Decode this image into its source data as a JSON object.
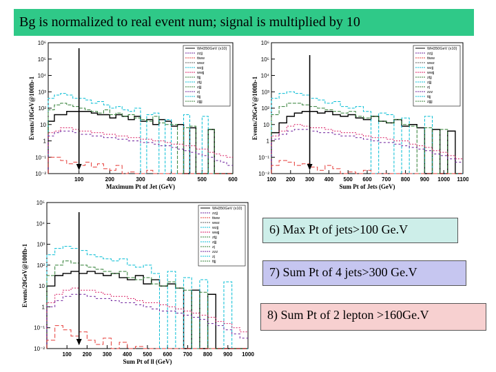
{
  "banner": {
    "text": "Bg is normalized to real event num;  signal is multiplied by 10",
    "bg": "#2fc988"
  },
  "labels": [
    {
      "text": "6) Max Pt of jets>100 Ge.V",
      "bg": "#cdeee9"
    },
    {
      "text": "7) Sum Pt of 4 jets>300 Ge.V",
      "bg": "#c6c6f0"
    },
    {
      "text": "8) Sum Pt of 2 lepton >160Ge.V",
      "bg": "#f7d0d0"
    }
  ],
  "chart_data": [
    {
      "type": "histogram",
      "xlabel": "Maximum Pt of Jet (GeV)",
      "ylabel": "Events/10GeV@100fb-1",
      "xlim": [
        0,
        600
      ],
      "xticks": [
        "100",
        "200",
        "300",
        "400",
        "500",
        "600"
      ],
      "yticks": [
        "10⁻²",
        "10⁻¹",
        "1",
        "10",
        "10²",
        "10³",
        "10⁴",
        "10⁵",
        "10⁶"
      ],
      "log_range": [
        -2,
        6
      ],
      "legend": [
        "WH350GeV (x10)",
        "zzjj",
        "ttww",
        "wwz",
        "wzjj",
        "wwjj",
        "ttjj",
        "ztjj",
        "zjjj",
        "zj",
        "ttjj",
        "zjjjj"
      ],
      "cut": 100,
      "series": [
        {
          "name": "signal",
          "color": "#000000",
          "dash": "",
          "bin": 20,
          "log_values": [
            1.2,
            1.6,
            1.6,
            1.8,
            1.8,
            1.8,
            1.8,
            1.7,
            1.6,
            1.6,
            1.4,
            1.6,
            1.5,
            1.3,
            1.5,
            1.2,
            1.3,
            1.0,
            1.3,
            1.2,
            0.9,
            1.0,
            -2,
            0.8,
            -2,
            -2,
            0.7,
            -2,
            -2,
            -2
          ]
        },
        {
          "name": "zjjj",
          "color": "#00bcd4",
          "dash": "4,2",
          "bin": 20,
          "log_values": [
            2.6,
            2.8,
            2.9,
            2.8,
            2.6,
            2.6,
            2.5,
            2.3,
            2.4,
            2.2,
            2.0,
            2.1,
            1.9,
            1.8,
            2.0,
            -2,
            1.6,
            1.7,
            -2,
            1.3,
            -2,
            -2,
            1.6,
            -2,
            -2,
            1.5,
            -2,
            -2,
            -2,
            -2
          ]
        },
        {
          "name": "ttjj",
          "color": "#2e7d32",
          "dash": "5,2",
          "bin": 20,
          "log_values": [
            1.9,
            2.2,
            2.3,
            2.2,
            2.1,
            2.0,
            1.9,
            1.8,
            1.7,
            1.9,
            1.6,
            1.7,
            1.5,
            1.6,
            1.4,
            1.3,
            1.2,
            1.5,
            1.1,
            1.0,
            1.0,
            -2,
            0.8,
            0.9,
            -2,
            -2,
            0.7,
            -2,
            -2,
            -2
          ]
        },
        {
          "name": "wwjj",
          "color": "#d81b60",
          "dash": "2,2",
          "bin": 20,
          "log_values": [
            0.5,
            0.6,
            0.8,
            0.8,
            0.7,
            0.6,
            0.6,
            0.5,
            0.5,
            0.4,
            0.4,
            0.3,
            0.3,
            0.2,
            0.2,
            0.1,
            0.1,
            0.0,
            0.0,
            -0.1,
            -0.2,
            -0.2,
            -0.3,
            -0.3,
            -0.5,
            -0.5,
            -0.7,
            -0.8,
            -0.9,
            -1.0
          ]
        },
        {
          "name": "zzjj",
          "color": "#6a1b9a",
          "dash": "3,3",
          "bin": 20,
          "log_values": [
            0.3,
            0.5,
            0.6,
            0.6,
            0.5,
            0.4,
            0.4,
            0.3,
            0.3,
            0.2,
            0.2,
            0.1,
            0.1,
            0.0,
            0.0,
            -0.1,
            -0.1,
            -0.2,
            -0.3,
            -0.3,
            -0.4,
            -0.5,
            -0.6,
            -0.7,
            -0.8,
            -0.9,
            -1.0,
            -1.2,
            -1.3,
            -1.5
          ]
        },
        {
          "name": "ttww",
          "color": "#e53935",
          "dash": "6,3",
          "bin": 20,
          "log_values": [
            -1.0,
            -1.0,
            -1.2,
            -1.4,
            -1.3,
            -1.5,
            -1.3,
            -1.6,
            -1.4,
            -1.7,
            -1.8,
            -1.5,
            -2,
            -1.9,
            -2,
            -2,
            -1.8,
            -2,
            -2,
            -2,
            -2,
            -2,
            -2,
            -2,
            -2,
            -2,
            -2,
            -2,
            -2,
            -2
          ]
        }
      ]
    },
    {
      "type": "histogram",
      "xlabel": "Sum Pt of Jets (GeV)",
      "ylabel": "Events/20GeV@100fb-1",
      "xlim": [
        100,
        1100
      ],
      "xticks": [
        "100",
        "200",
        "300",
        "400",
        "500",
        "600",
        "700",
        "800",
        "900",
        "1000",
        "1100"
      ],
      "yticks": [
        "10⁻²",
        "10⁻¹",
        "1",
        "10",
        "10²",
        "10³",
        "10⁴",
        "10⁵",
        "10⁶"
      ],
      "log_range": [
        -2,
        6
      ],
      "legend": [
        "WH350GeV (x10)",
        "zzjj",
        "ttww",
        "wwz",
        "wzjj",
        "wwjj",
        "ztjj",
        "zjjj",
        "zj",
        "zzz",
        "ttjj",
        "zjjjj"
      ],
      "cut": 300,
      "series": [
        {
          "name": "signal",
          "color": "#000000",
          "dash": "",
          "bin": 40,
          "log_values": [
            0.5,
            1.1,
            1.5,
            1.7,
            1.8,
            1.8,
            1.7,
            1.8,
            1.6,
            1.5,
            1.6,
            1.4,
            1.3,
            1.5,
            1.2,
            1.1,
            1.3,
            0.9,
            1.0,
            0.8,
            -2,
            0.7,
            -2,
            0.6,
            -2
          ]
        },
        {
          "name": "zjjj",
          "color": "#00bcd4",
          "dash": "4,2",
          "bin": 40,
          "log_values": [
            2.6,
            2.9,
            3.0,
            2.9,
            2.8,
            2.6,
            2.5,
            2.3,
            2.4,
            2.1,
            2.0,
            2.1,
            1.8,
            -2,
            1.7,
            1.6,
            -2,
            1.4,
            -2,
            -2,
            1.5,
            -2,
            -2,
            -2,
            -2
          ]
        },
        {
          "name": "ttjj",
          "color": "#2e7d32",
          "dash": "5,2",
          "bin": 40,
          "log_values": [
            1.6,
            2.1,
            2.3,
            2.3,
            2.2,
            2.1,
            2.0,
            1.9,
            1.8,
            1.7,
            1.8,
            1.5,
            1.4,
            1.5,
            1.2,
            1.1,
            1.3,
            1.0,
            0.9,
            -2,
            0.8,
            -2,
            0.7,
            -2,
            -2
          ]
        },
        {
          "name": "wwjj",
          "color": "#d81b60",
          "dash": "2,2",
          "bin": 40,
          "log_values": [
            0.3,
            0.6,
            0.9,
            1.0,
            0.9,
            0.8,
            0.8,
            0.7,
            0.6,
            0.5,
            0.5,
            0.4,
            0.3,
            0.2,
            0.2,
            0.1,
            0.0,
            0.0,
            -0.2,
            -0.3,
            -0.4,
            -0.6,
            -0.7,
            -0.9,
            -1.1
          ]
        },
        {
          "name": "zzjj",
          "color": "#6a1b9a",
          "dash": "3,3",
          "bin": 40,
          "log_values": [
            0.1,
            0.4,
            0.6,
            0.7,
            0.7,
            0.6,
            0.5,
            0.5,
            0.4,
            0.3,
            0.3,
            0.2,
            0.1,
            0.0,
            -0.1,
            -0.1,
            -0.2,
            -0.3,
            -0.4,
            -0.5,
            -0.6,
            -0.8,
            -0.9,
            -1.1,
            -1.3
          ]
        },
        {
          "name": "ttww",
          "color": "#e53935",
          "dash": "6,3",
          "bin": 40,
          "log_values": [
            -1.5,
            -1.2,
            -1.3,
            -1.5,
            -1.4,
            -1.6,
            -1.8,
            -1.5,
            -1.7,
            -2,
            -1.9,
            -2,
            -1.8,
            -2,
            -2,
            -2,
            -2,
            -2,
            -2,
            -2,
            -2,
            -2,
            -2,
            -2,
            -2
          ]
        }
      ]
    },
    {
      "type": "histogram",
      "xlabel": "Sum Pt of ll (GeV)",
      "ylabel": "Events/20GeV@100fb-1",
      "xlim": [
        0,
        1000
      ],
      "xticks": [
        "100",
        "200",
        "300",
        "400",
        "500",
        "600",
        "700",
        "800",
        "900",
        "1000"
      ],
      "yticks": [
        "10⁻²",
        "10⁻¹",
        "1",
        "10",
        "10²",
        "10³",
        "10⁴",
        "10⁵"
      ],
      "log_range": [
        -2,
        5
      ],
      "legend": [
        "WH350GeV (x10)",
        "zzjj",
        "ttww",
        "wwz",
        "wzjj",
        "wwjj",
        "ztjj",
        "zjjj",
        "zj",
        "zzz",
        "zj",
        "ttjj"
      ],
      "cut": 160,
      "series": [
        {
          "name": "signal",
          "color": "#000000",
          "dash": "",
          "bin": 40,
          "log_values": [
            1.0,
            1.5,
            1.6,
            1.7,
            1.6,
            1.7,
            1.6,
            1.5,
            1.6,
            1.4,
            1.3,
            1.5,
            1.1,
            1.3,
            1.0,
            1.1,
            0.9,
            -2,
            0.8,
            -2,
            0.6,
            -2,
            -2,
            -2,
            -2
          ]
        },
        {
          "name": "zjjj",
          "color": "#00bcd4",
          "dash": "4,2",
          "bin": 40,
          "log_values": [
            2.5,
            2.8,
            2.9,
            2.8,
            2.7,
            2.5,
            2.4,
            2.3,
            2.2,
            2.3,
            2.0,
            1.9,
            2.0,
            1.6,
            -2,
            1.7,
            -2,
            1.4,
            -2,
            1.3,
            -2,
            -2,
            1.2,
            -2,
            -2
          ]
        },
        {
          "name": "ttjj",
          "color": "#2e7d32",
          "dash": "5,2",
          "bin": 40,
          "log_values": [
            1.5,
            2.0,
            2.2,
            2.1,
            2.0,
            1.9,
            1.8,
            1.7,
            1.6,
            1.7,
            1.4,
            1.3,
            1.4,
            1.1,
            1.0,
            1.2,
            0.9,
            0.8,
            -2,
            0.7,
            -2,
            -2,
            -2,
            -2,
            -2
          ]
        },
        {
          "name": "wwjj",
          "color": "#d81b60",
          "dash": "2,2",
          "bin": 40,
          "log_values": [
            0.2,
            0.6,
            0.8,
            0.9,
            0.8,
            0.8,
            0.7,
            0.6,
            0.5,
            0.5,
            0.4,
            0.3,
            0.2,
            0.2,
            0.1,
            0.0,
            -0.1,
            -0.2,
            -0.3,
            -0.4,
            -0.5,
            -0.7,
            -0.8,
            -1.0,
            -1.2
          ]
        },
        {
          "name": "zzjj",
          "color": "#6a1b9a",
          "dash": "3,3",
          "bin": 40,
          "log_values": [
            0.0,
            0.3,
            0.5,
            0.6,
            0.6,
            0.5,
            0.4,
            0.4,
            0.3,
            0.2,
            0.2,
            0.1,
            0.0,
            -0.1,
            -0.2,
            -0.2,
            -0.3,
            -0.4,
            -0.5,
            -0.6,
            -0.8,
            -0.9,
            -1.1,
            -1.3,
            -1.5
          ]
        },
        {
          "name": "ttww",
          "color": "#e53935",
          "dash": "6,3",
          "bin": 40,
          "log_values": [
            -1.6,
            -0.9,
            -1.1,
            -1.4,
            -1.2,
            -1.6,
            -1.8,
            -1.5,
            -2,
            -1.7,
            -2,
            -1.9,
            -2,
            -2,
            -2,
            -2,
            -2,
            -2,
            -2,
            -2,
            -2,
            -2,
            -2,
            -2,
            -2
          ]
        }
      ]
    }
  ]
}
